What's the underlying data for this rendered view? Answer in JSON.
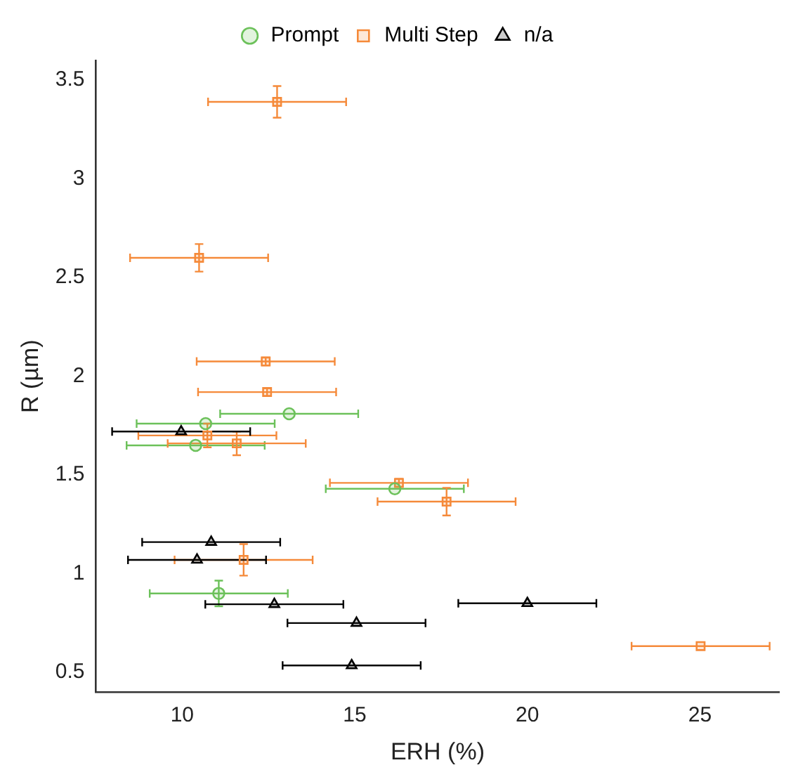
{
  "chart_data": {
    "type": "scatter",
    "xlabel": "ERH (%)",
    "ylabel": "R (µm)",
    "xlim": [
      7.5,
      27.3
    ],
    "ylim": [
      0.4,
      3.6
    ],
    "xticks": [
      10,
      15,
      20,
      25
    ],
    "yticks": [
      0.5,
      1,
      1.5,
      2,
      2.5,
      3,
      3.5
    ],
    "grid": false,
    "legend": "top",
    "series": [
      {
        "name": "Prompt",
        "color": "#6cc15a",
        "marker": "circle",
        "x": [
          13.1,
          10.68,
          10.39,
          16.16,
          11.06
        ],
        "values": [
          1.81,
          1.76,
          1.65,
          1.43,
          0.9
        ],
        "xerrors": [
          2,
          2,
          2,
          2,
          2
        ],
        "errors": [
          null,
          null,
          null,
          null,
          0.065
        ]
      },
      {
        "name": "Multi Step",
        "color": "#f58a3a",
        "marker": "square",
        "x": [
          12.75,
          10.49,
          12.42,
          12.46,
          10.73,
          11.58,
          16.28,
          17.66,
          11.78,
          25.02
        ],
        "values": [
          3.39,
          2.6,
          2.075,
          1.92,
          1.7,
          1.66,
          1.46,
          1.365,
          1.07,
          0.633
        ],
        "xerrors": [
          2,
          2,
          2,
          2,
          2,
          2,
          2,
          2,
          2,
          2
        ],
        "errors": [
          0.08,
          0.07,
          0.02,
          0.02,
          0.06,
          0.06,
          0.02,
          0.07,
          0.08,
          null
        ]
      },
      {
        "name": "n/a",
        "color": "#000000",
        "marker": "triangle",
        "x": [
          9.97,
          10.84,
          10.43,
          12.67,
          20,
          15.05,
          14.91
        ],
        "values": [
          1.72,
          1.16,
          1.07,
          0.845,
          0.85,
          0.75,
          0.535
        ],
        "xerrors": [
          2,
          2,
          2,
          2,
          2,
          2,
          2
        ],
        "errors": [
          null,
          null,
          null,
          null,
          null,
          null,
          null
        ]
      }
    ]
  }
}
